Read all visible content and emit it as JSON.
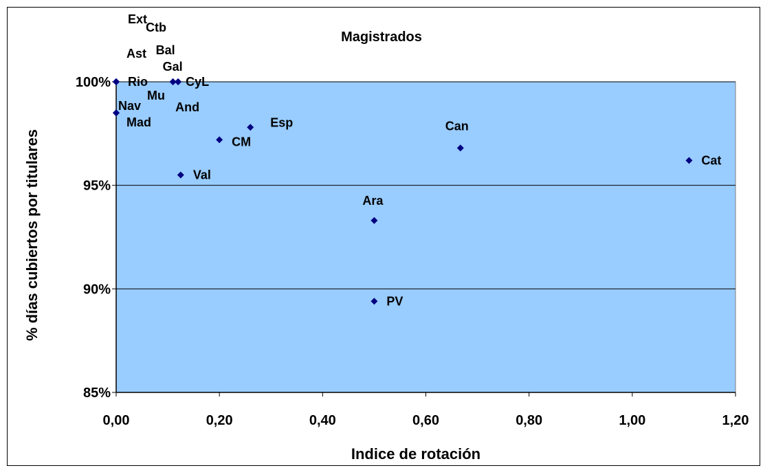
{
  "chart_data": {
    "type": "scatter",
    "title": "Magistrados",
    "xlabel": "Indice de rotación",
    "ylabel": "% días cubiertos por titulares",
    "xlim": [
      0,
      1.2
    ],
    "ylim": [
      0.85,
      1.0
    ],
    "x_ticks": [
      "0,00",
      "0,20",
      "0,40",
      "0,60",
      "0,80",
      "1,00",
      "1,20"
    ],
    "y_ticks": [
      "85%",
      "90%",
      "95%",
      "100%"
    ],
    "grid": "horizontal",
    "plot_background": "#99ccff",
    "marker_color": "#000080",
    "points": [
      {
        "label": "Ext",
        "x": 0.0,
        "y": 1.0
      },
      {
        "label": "Ctb",
        "x": 0.0,
        "y": 1.0
      },
      {
        "label": "Ast",
        "x": 0.0,
        "y": 1.0
      },
      {
        "label": "Rio",
        "x": 0.0,
        "y": 1.0
      },
      {
        "label": "Bal",
        "x": 0.11,
        "y": 1.0
      },
      {
        "label": "Gal",
        "x": 0.11,
        "y": 1.0
      },
      {
        "label": "CyL",
        "x": 0.12,
        "y": 1.0
      },
      {
        "label": "Mu",
        "x": 0.0,
        "y": 1.0
      },
      {
        "label": "And",
        "x": 0.12,
        "y": 1.0
      },
      {
        "label": "Nav",
        "x": 0.0,
        "y": 0.985
      },
      {
        "label": "Mad",
        "x": 0.0,
        "y": 0.985
      },
      {
        "label": "Esp",
        "x": 0.26,
        "y": 0.978
      },
      {
        "label": "CM",
        "x": 0.2,
        "y": 0.972
      },
      {
        "label": "Val",
        "x": 0.125,
        "y": 0.955
      },
      {
        "label": "Can",
        "x": 0.667,
        "y": 0.968
      },
      {
        "label": "Cat",
        "x": 1.11,
        "y": 0.962
      },
      {
        "label": "Ara",
        "x": 0.5,
        "y": 0.933
      },
      {
        "label": "PV",
        "x": 0.5,
        "y": 0.894
      }
    ]
  }
}
